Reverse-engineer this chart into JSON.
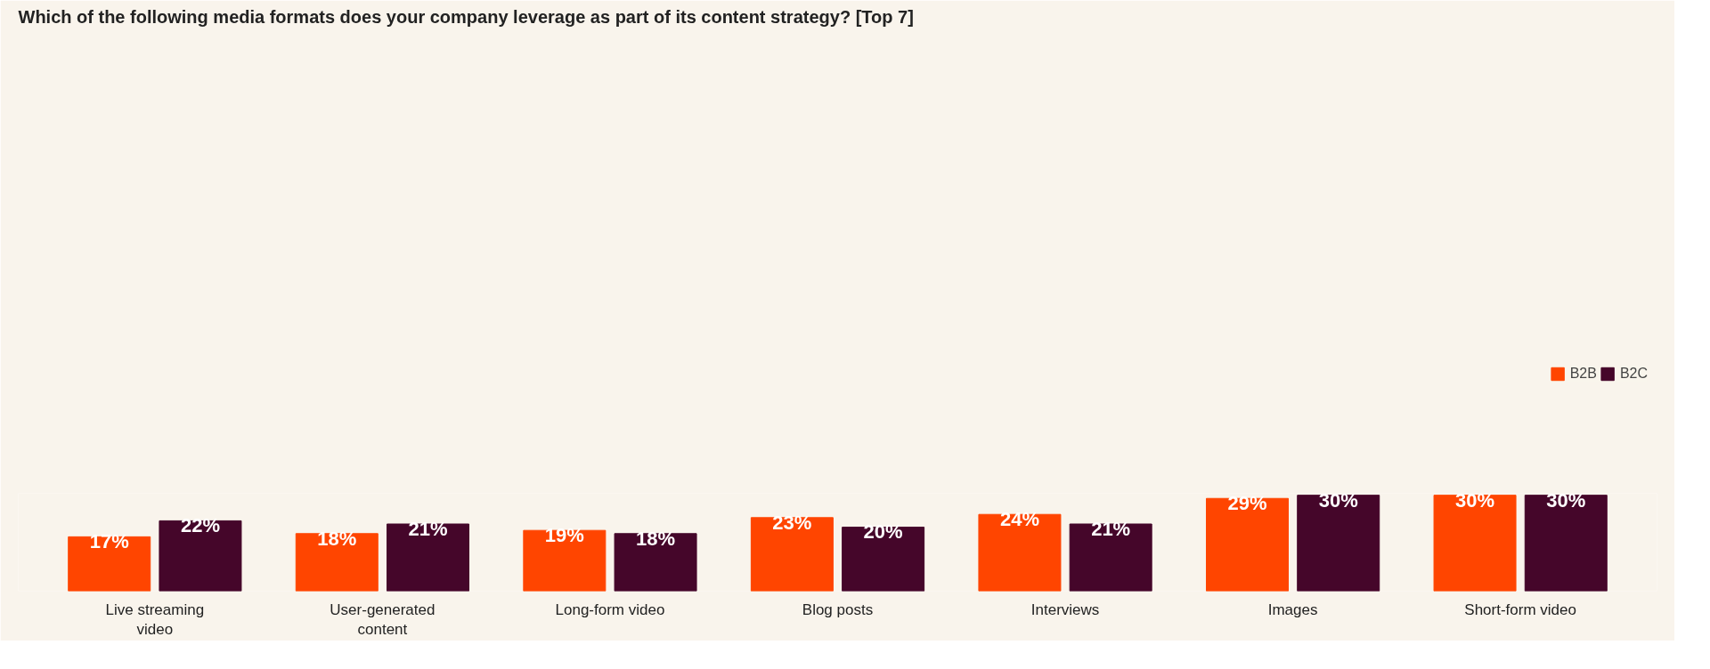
{
  "chart_data": {
    "type": "bar",
    "title": "Which of the following media formats does your company leverage as part of its content strategy? [Top 7]",
    "categories": [
      "Live streaming video",
      "User-generated content",
      "Long-form video",
      "Blog posts",
      "Interviews",
      "Images",
      "Short-form video"
    ],
    "series": [
      {
        "name": "B2B",
        "color": "#ff4500",
        "values": [
          17,
          18,
          19,
          23,
          24,
          29,
          30
        ],
        "value_labels": [
          "17%",
          "18%",
          "19%",
          "23%",
          "24%",
          "29%",
          "30%"
        ]
      },
      {
        "name": "B2C",
        "color": "#45062a",
        "values": [
          22,
          21,
          18,
          20,
          21,
          30,
          30
        ],
        "value_labels": [
          "22%",
          "21%",
          "18%",
          "20%",
          "21%",
          "30%",
          "30%"
        ]
      }
    ],
    "legend": "top",
    "grid": false
  }
}
